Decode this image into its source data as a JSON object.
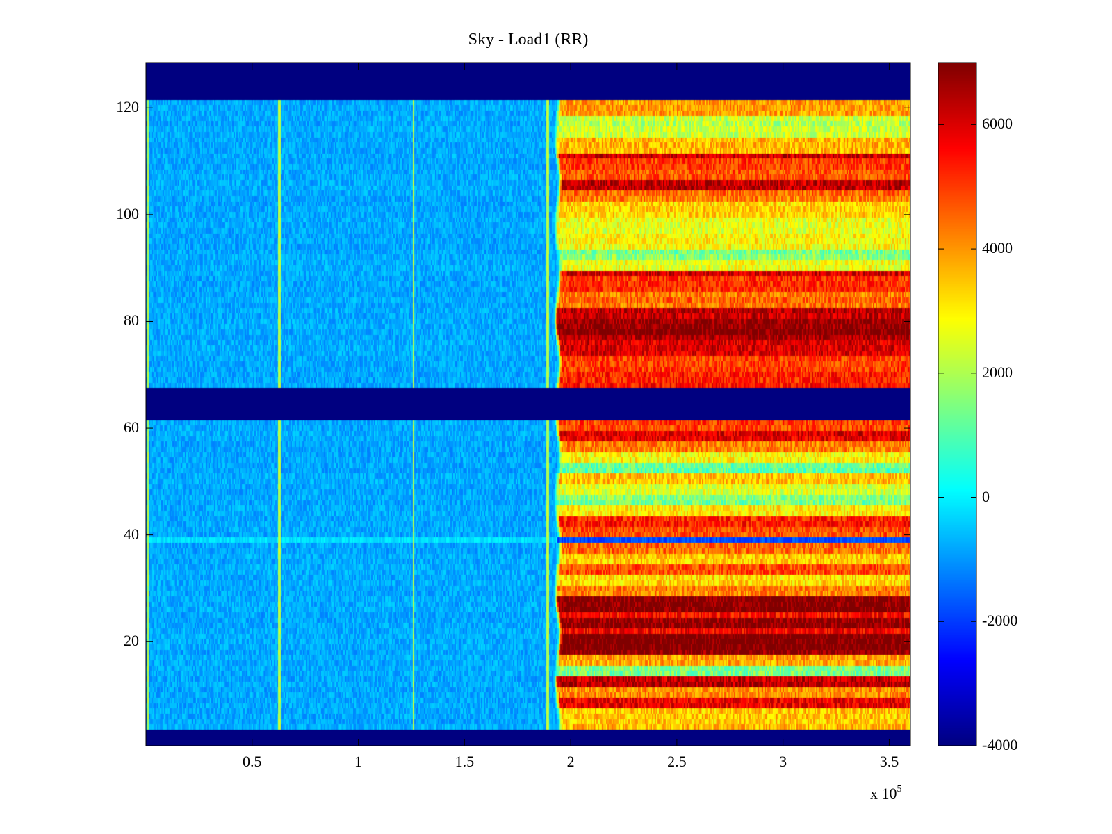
{
  "chart_data": {
    "type": "heatmap",
    "title": "Sky - Load1 (RR)",
    "xlabel": "",
    "ylabel": "",
    "x_scale_label": "x 10",
    "x_scale_exponent": "5",
    "xlim": [
      0,
      360000
    ],
    "ylim": [
      1,
      128
    ],
    "x_ticks": [
      {
        "value": 50000,
        "label": "0.5"
      },
      {
        "value": 100000,
        "label": "1"
      },
      {
        "value": 150000,
        "label": "1.5"
      },
      {
        "value": 200000,
        "label": "2"
      },
      {
        "value": 250000,
        "label": "2.5"
      },
      {
        "value": 300000,
        "label": "3"
      },
      {
        "value": 350000,
        "label": "3.5"
      }
    ],
    "y_ticks": [
      {
        "value": 20,
        "label": "20"
      },
      {
        "value": 40,
        "label": "40"
      },
      {
        "value": 60,
        "label": "60"
      },
      {
        "value": 80,
        "label": "80"
      },
      {
        "value": 100,
        "label": "100"
      },
      {
        "value": 120,
        "label": "120"
      }
    ],
    "colorbar": {
      "colormap": "jet",
      "range": [
        -4000,
        7000
      ],
      "ticks": [
        {
          "value": -4000,
          "label": "-4000"
        },
        {
          "value": -2000,
          "label": "-2000"
        },
        {
          "value": 0,
          "label": "0"
        },
        {
          "value": 2000,
          "label": "2000"
        },
        {
          "value": 4000,
          "label": "4000"
        },
        {
          "value": 6000,
          "label": "6000"
        }
      ]
    },
    "masked_row_bands": [
      [
        1,
        3
      ],
      [
        62,
        67
      ],
      [
        122,
        128
      ]
    ],
    "mask_value": -4000,
    "transition_x": 193000,
    "low_region_value": -800,
    "vertical_artifact_x": [
      1000,
      63000,
      126000,
      189000
    ],
    "row_profile_high": [
      {
        "rows": [
          4,
          7
        ],
        "value": 3500
      },
      {
        "rows": [
          8,
          9
        ],
        "value": 5800
      },
      {
        "rows": [
          10,
          11
        ],
        "value": 4200
      },
      {
        "rows": [
          12,
          13
        ],
        "value": 6300
      },
      {
        "rows": [
          14,
          15
        ],
        "value": 1500
      },
      {
        "rows": [
          16,
          17
        ],
        "value": 3800
      },
      {
        "rows": [
          18,
          21
        ],
        "value": 7000
      },
      {
        "rows": [
          22,
          22
        ],
        "value": 5600
      },
      {
        "rows": [
          23,
          24
        ],
        "value": 6900
      },
      {
        "rows": [
          25,
          25
        ],
        "value": 5700
      },
      {
        "rows": [
          26,
          28
        ],
        "value": 6900
      },
      {
        "rows": [
          29,
          30
        ],
        "value": 4300
      },
      {
        "rows": [
          31,
          32
        ],
        "value": 3200
      },
      {
        "rows": [
          33,
          34
        ],
        "value": 4700
      },
      {
        "rows": [
          35,
          36
        ],
        "value": 3400
      },
      {
        "rows": [
          37,
          38
        ],
        "value": 4600
      },
      {
        "rows": [
          39,
          39
        ],
        "value": -1800
      },
      {
        "rows": [
          40,
          41
        ],
        "value": 4800
      },
      {
        "rows": [
          42,
          43
        ],
        "value": 5300
      },
      {
        "rows": [
          44,
          45
        ],
        "value": 3000
      },
      {
        "rows": [
          46,
          47
        ],
        "value": 1500
      },
      {
        "rows": [
          48,
          49
        ],
        "value": 2600
      },
      {
        "rows": [
          50,
          51
        ],
        "value": 3400
      },
      {
        "rows": [
          52,
          53
        ],
        "value": 1300
      },
      {
        "rows": [
          54,
          55
        ],
        "value": 3000
      },
      {
        "rows": [
          56,
          57
        ],
        "value": 4400
      },
      {
        "rows": [
          58,
          59
        ],
        "value": 5900
      },
      {
        "rows": [
          60,
          61
        ],
        "value": 4900
      },
      {
        "rows": [
          68,
          70
        ],
        "value": 5400
      },
      {
        "rows": [
          71,
          73
        ],
        "value": 5000
      },
      {
        "rows": [
          74,
          76
        ],
        "value": 5900
      },
      {
        "rows": [
          77,
          77
        ],
        "value": 6500
      },
      {
        "rows": [
          78,
          78
        ],
        "value": 7000
      },
      {
        "rows": [
          79,
          80
        ],
        "value": 6700
      },
      {
        "rows": [
          81,
          82
        ],
        "value": 6300
      },
      {
        "rows": [
          83,
          85
        ],
        "value": 4400
      },
      {
        "rows": [
          86,
          88
        ],
        "value": 5200
      },
      {
        "rows": [
          89,
          89
        ],
        "value": 6000
      },
      {
        "rows": [
          90,
          91
        ],
        "value": 2600
      },
      {
        "rows": [
          92,
          93
        ],
        "value": 1500
      },
      {
        "rows": [
          94,
          96
        ],
        "value": 3000
      },
      {
        "rows": [
          97,
          99
        ],
        "value": 2600
      },
      {
        "rows": [
          100,
          102
        ],
        "value": 3400
      },
      {
        "rows": [
          103,
          104
        ],
        "value": 4400
      },
      {
        "rows": [
          105,
          106
        ],
        "value": 6200
      },
      {
        "rows": [
          107,
          108
        ],
        "value": 4700
      },
      {
        "rows": [
          109,
          110
        ],
        "value": 5100
      },
      {
        "rows": [
          111,
          111
        ],
        "value": 6100
      },
      {
        "rows": [
          112,
          114
        ],
        "value": 3700
      },
      {
        "rows": [
          115,
          118
        ],
        "value": 2200
      },
      {
        "rows": [
          119,
          121
        ],
        "value": 3900
      }
    ]
  }
}
